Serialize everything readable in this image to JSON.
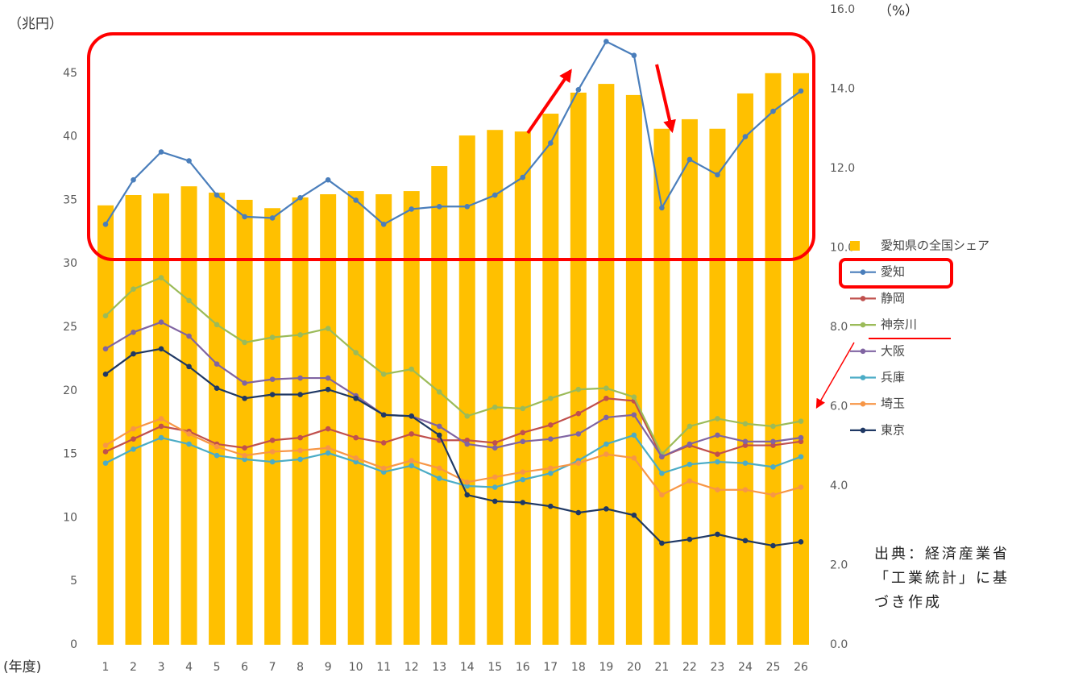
{
  "chart_data": {
    "type": "combo",
    "y_unit_label": "（兆円）",
    "y2_unit_label": "（%）",
    "x_unit_label": "(年度)",
    "source": [
      "出典：経済産業省",
      "「工業統計」に基",
      "づき作成"
    ],
    "categories": [
      "1",
      "2",
      "3",
      "4",
      "5",
      "6",
      "7",
      "8",
      "9",
      "10",
      "11",
      "12",
      "13",
      "14",
      "15",
      "16",
      "17",
      "18",
      "19",
      "20",
      "21",
      "22",
      "23",
      "24",
      "25",
      "26"
    ],
    "ylim": [
      0,
      50
    ],
    "yticks": [
      0,
      5,
      10,
      15,
      20,
      25,
      30,
      35,
      40,
      45
    ],
    "y2lim": [
      0,
      16
    ],
    "y2ticks": [
      {
        "value": 0,
        "label": "0.0"
      },
      {
        "value": 2,
        "label": "2.0"
      },
      {
        "value": 4,
        "label": "4.0"
      },
      {
        "value": 6,
        "label": "6.0"
      },
      {
        "value": 8,
        "label": "8.0"
      },
      {
        "value": 10,
        "label": "10.0"
      },
      {
        "value": 12,
        "label": "12.0"
      },
      {
        "value": 14,
        "label": "14.0"
      },
      {
        "value": 16,
        "label": "16.0"
      }
    ],
    "grid": false,
    "legend": "right",
    "bars": {
      "name": "愛知県の全国シェア",
      "color": "#ffc000",
      "axis": "y2",
      "values": [
        11.07,
        11.33,
        11.37,
        11.55,
        11.39,
        11.21,
        11.0,
        11.27,
        11.35,
        11.43,
        11.35,
        11.43,
        12.06,
        12.83,
        12.97,
        12.93,
        13.38,
        13.91,
        14.13,
        13.85,
        13.0,
        13.24,
        13.0,
        13.89,
        14.4,
        14.4
      ]
    },
    "series": [
      {
        "name": "愛知",
        "color": "#4a7ebb",
        "values": [
          33.1,
          36.6,
          38.8,
          38.1,
          35.4,
          33.7,
          33.6,
          35.2,
          36.6,
          35.0,
          33.1,
          34.3,
          34.5,
          34.5,
          35.4,
          36.8,
          39.5,
          43.7,
          47.5,
          46.4,
          34.4,
          38.2,
          37.0,
          40.0,
          42.0,
          43.6
        ]
      },
      {
        "name": "静岡",
        "color": "#c0504d",
        "values": [
          15.2,
          16.2,
          17.2,
          16.8,
          15.8,
          15.5,
          16.1,
          16.3,
          17.0,
          16.3,
          15.9,
          16.6,
          16.1,
          16.1,
          15.9,
          16.7,
          17.3,
          18.2,
          19.4,
          19.2,
          14.8,
          15.7,
          15.0,
          15.7,
          15.7,
          16.0
        ]
      },
      {
        "name": "神奈川",
        "color": "#9bbb59",
        "values": [
          25.9,
          28.0,
          28.9,
          27.1,
          25.2,
          23.8,
          24.2,
          24.4,
          24.9,
          23.0,
          21.3,
          21.7,
          19.9,
          18.0,
          18.7,
          18.6,
          19.4,
          20.1,
          20.2,
          19.5,
          15.0,
          17.2,
          17.8,
          17.4,
          17.2,
          17.6
        ]
      },
      {
        "name": "大阪",
        "color": "#8064a2",
        "values": [
          23.3,
          24.6,
          25.4,
          24.3,
          22.1,
          20.6,
          20.9,
          21.0,
          21.0,
          19.6,
          18.1,
          18.0,
          17.2,
          15.8,
          15.5,
          16.0,
          16.2,
          16.6,
          17.9,
          18.1,
          14.8,
          15.8,
          16.5,
          16.0,
          16.0,
          16.3
        ]
      },
      {
        "name": "兵庫",
        "color": "#4bacc6",
        "values": [
          14.3,
          15.4,
          16.3,
          15.8,
          14.9,
          14.6,
          14.4,
          14.6,
          15.1,
          14.4,
          13.6,
          14.1,
          13.1,
          12.5,
          12.4,
          13.0,
          13.5,
          14.5,
          15.8,
          16.5,
          13.5,
          14.2,
          14.4,
          14.3,
          14.0,
          14.8
        ]
      },
      {
        "name": "埼玉",
        "color": "#f79646",
        "values": [
          15.7,
          17.0,
          17.8,
          16.6,
          15.6,
          14.9,
          15.2,
          15.3,
          15.5,
          14.7,
          13.9,
          14.5,
          13.9,
          12.8,
          13.2,
          13.6,
          13.9,
          14.3,
          15.0,
          14.7,
          11.8,
          12.9,
          12.2,
          12.2,
          11.8,
          12.4
        ]
      },
      {
        "name": "東京",
        "color": "#1f3864",
        "values": [
          21.3,
          22.9,
          23.3,
          21.9,
          20.2,
          19.4,
          19.7,
          19.7,
          20.1,
          19.4,
          18.1,
          18.0,
          16.5,
          11.8,
          11.3,
          11.2,
          10.9,
          10.4,
          10.7,
          10.2,
          8.0,
          8.3,
          8.7,
          8.2,
          7.8,
          8.1
        ]
      }
    ]
  }
}
